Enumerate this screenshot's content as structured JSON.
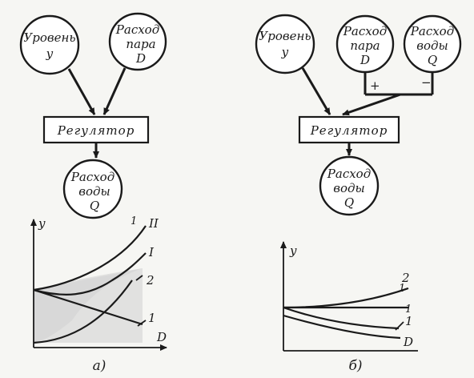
{
  "diagram_a": {
    "nodes": {
      "level": {
        "line1": "Уровень",
        "line2": "у"
      },
      "steam": {
        "line1": "Расход",
        "line2": "пара",
        "line3": "D"
      },
      "water": {
        "line1": "Расход",
        "line2": "воды",
        "line3": "Q"
      }
    },
    "regulator": "Регулятор",
    "graph": {
      "y_axis": "у",
      "x_axis": "D",
      "curve_labels": [
        "II",
        "I",
        "2",
        "1"
      ],
      "tick_label": "1"
    },
    "caption": "а)"
  },
  "diagram_b": {
    "nodes": {
      "level": {
        "line1": "Уровень",
        "line2": "у"
      },
      "steam": {
        "line1": "Расход",
        "line2": "пара",
        "line3": "D"
      },
      "water_in": {
        "line1": "Расход",
        "line2": "воды",
        "line3": "Q"
      },
      "water": {
        "line1": "Расход",
        "line2": "воды",
        "line3": "Q"
      }
    },
    "regulator": "Регулятор",
    "plus": "+",
    "minus": "−",
    "graph": {
      "y_axis": "у",
      "x_axis": "D",
      "curve_labels": [
        "2",
        "1"
      ],
      "tick_labels": [
        "1",
        "1"
      ]
    },
    "caption": "б)"
  },
  "colors": {
    "ink": "#1a1a1a",
    "paper": "#f6f6f3",
    "shade": "#d9d9d9"
  }
}
